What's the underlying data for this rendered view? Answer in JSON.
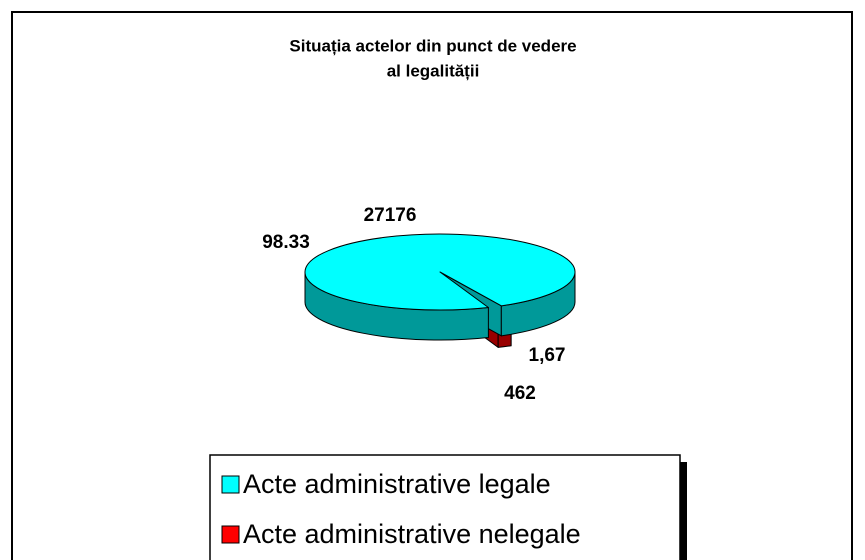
{
  "chart_data": {
    "type": "pie",
    "title": [
      "Situația actelor din punct de vedere",
      "al legalității"
    ],
    "categories": [
      "Acte administrative legale",
      "Acte administrative nelegale"
    ],
    "values": [
      27176,
      462
    ],
    "percentages": [
      98.33,
      1.67
    ],
    "percentage_labels": [
      "98.33",
      "1,67"
    ],
    "colors": [
      "#00ffff",
      "#ff0000"
    ],
    "side_colors": [
      "#009999",
      "#990000"
    ],
    "legend": "bottom"
  }
}
